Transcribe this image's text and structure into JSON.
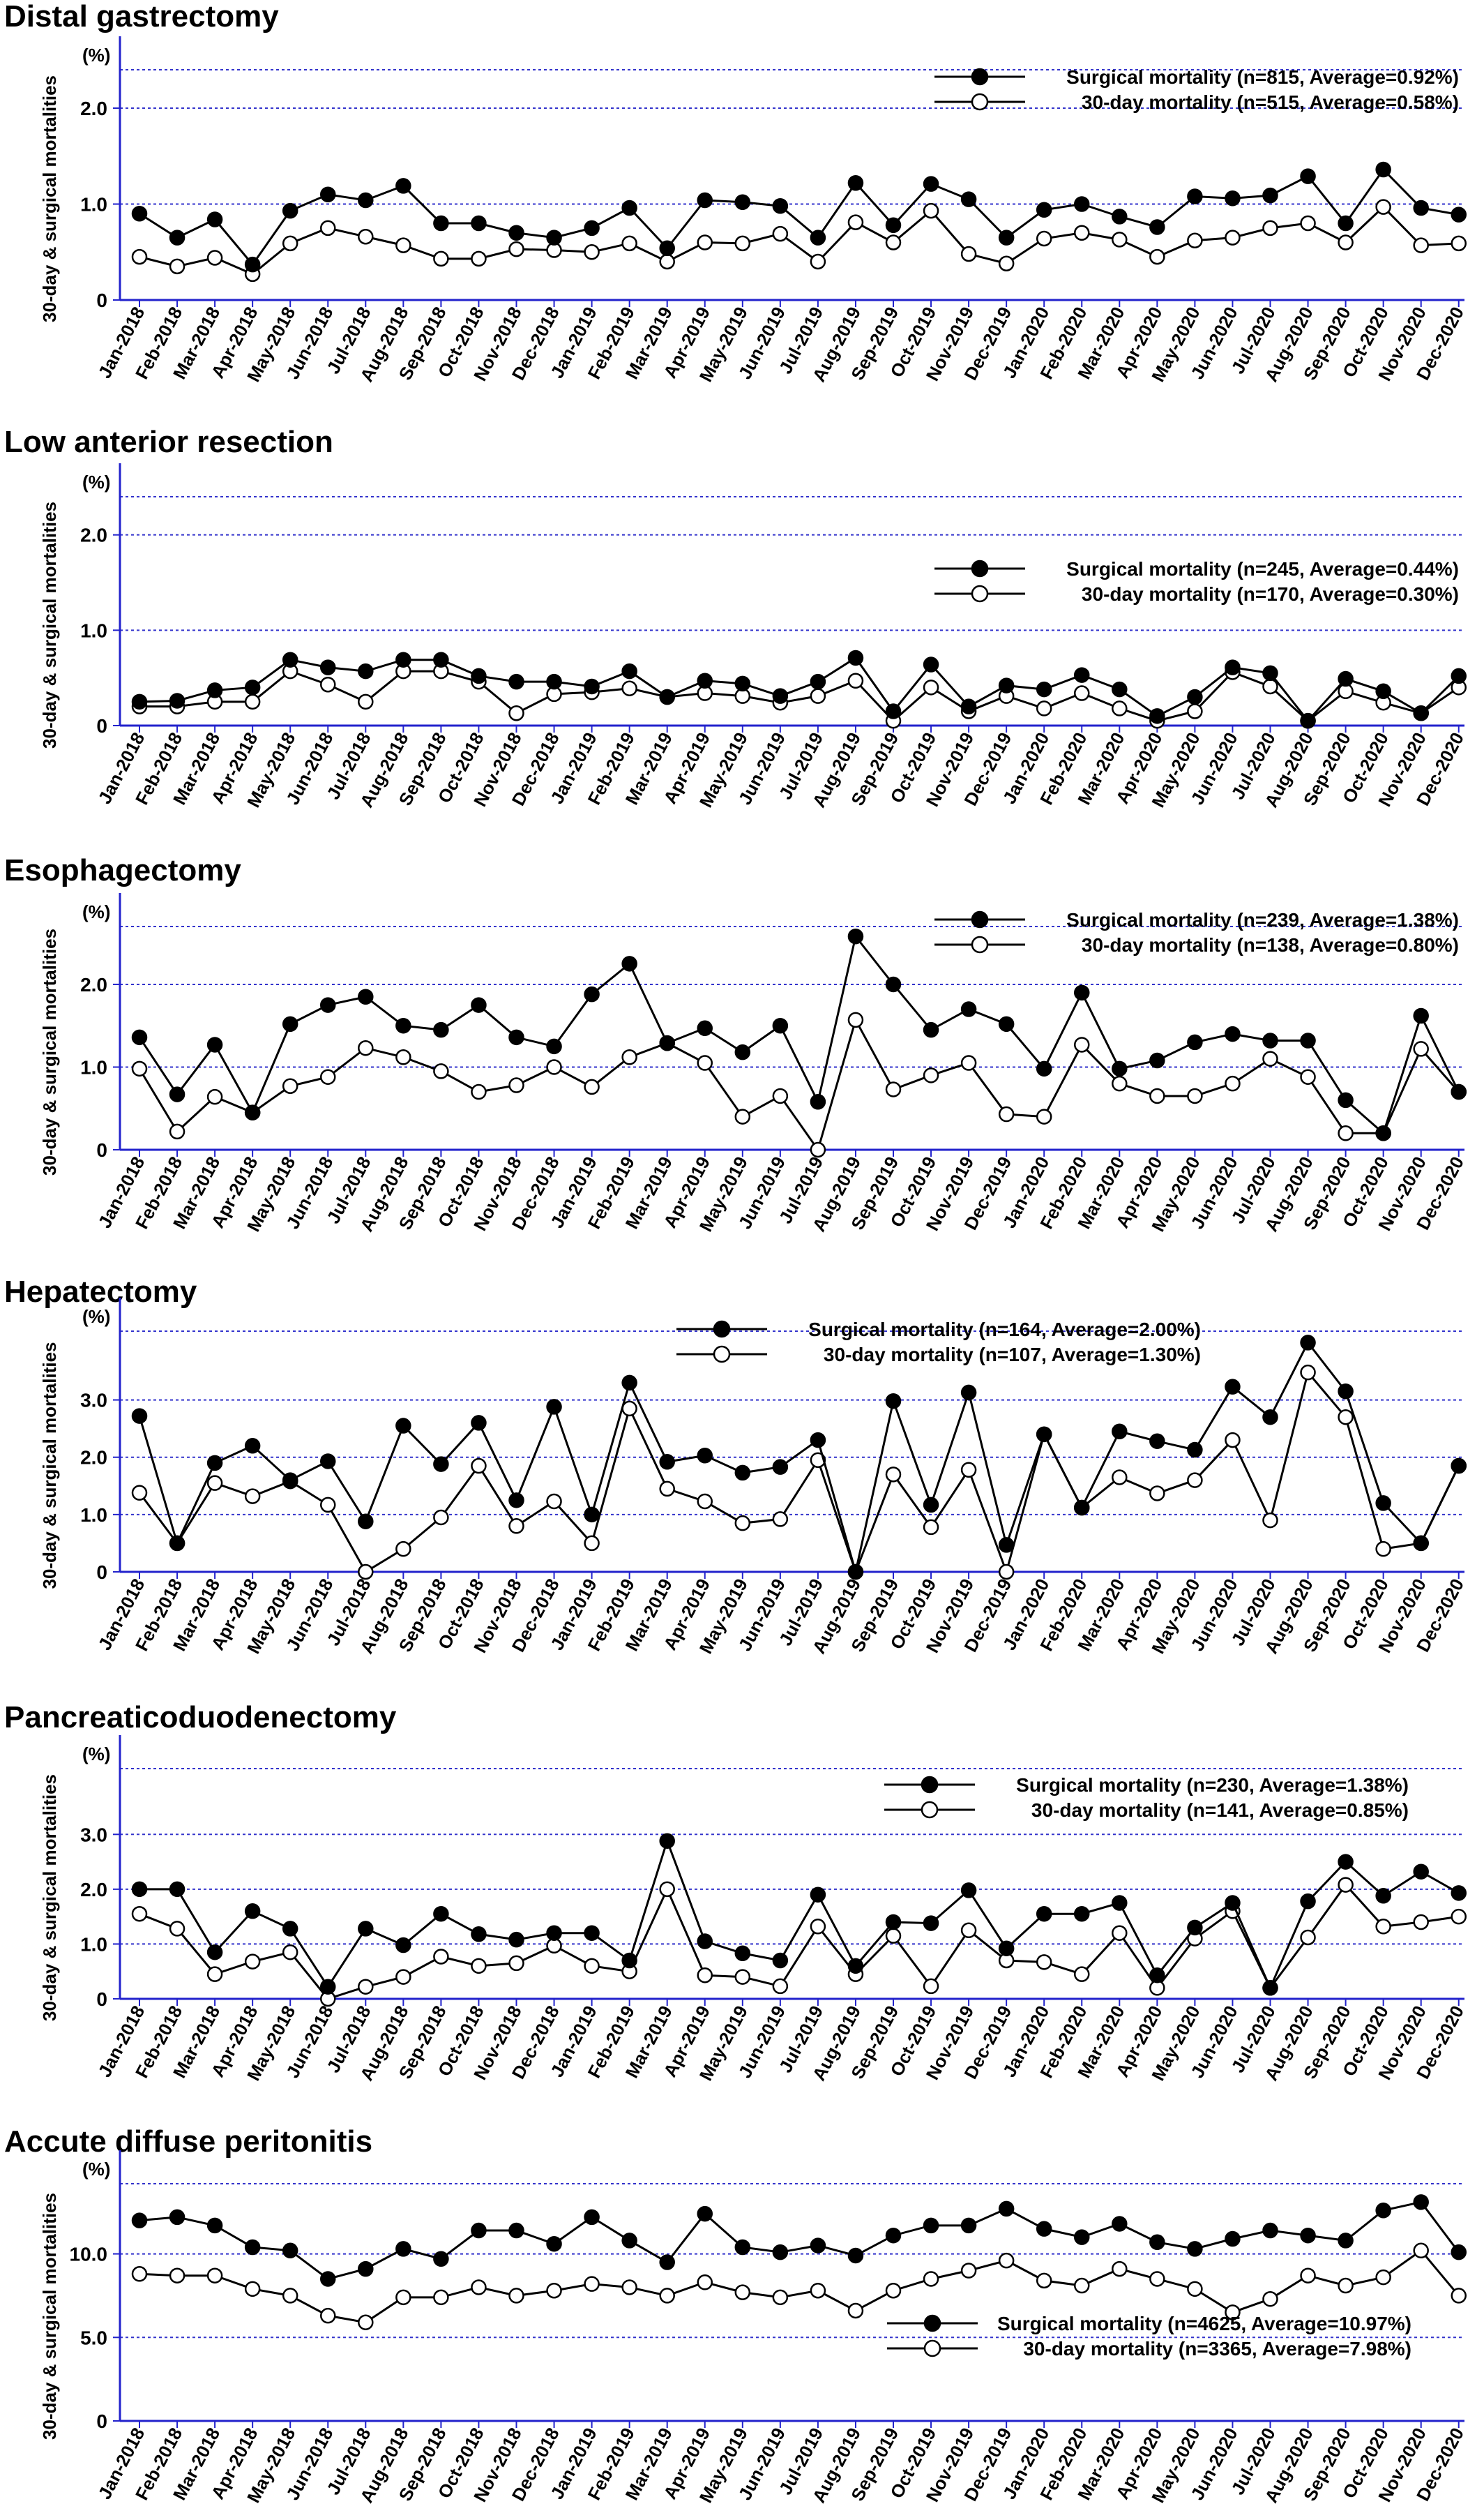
{
  "months": [
    "Jan-2018",
    "Feb-2018",
    "Mar-2018",
    "Apr-2018",
    "May-2018",
    "Jun-2018",
    "Jul-2018",
    "Aug-2018",
    "Sep-2018",
    "Oct-2018",
    "Nov-2018",
    "Dec-2018",
    "Jan-2019",
    "Feb-2019",
    "Mar-2019",
    "Apr-2019",
    "May-2019",
    "Jun-2019",
    "Jul-2019",
    "Aug-2019",
    "Sep-2019",
    "Oct-2019",
    "Nov-2019",
    "Dec-2019",
    "Jan-2020",
    "Feb-2020",
    "Mar-2020",
    "Apr-2020",
    "May-2020",
    "Jun-2020",
    "Jul-2020",
    "Aug-2020",
    "Sep-2020",
    "Oct-2020",
    "Nov-2020",
    "Dec-2020"
  ],
  "colors": {
    "axis": "#2222cc",
    "grid": "#3333cc",
    "line": "#000000",
    "open_marker_fill": "#ffffff",
    "filled_marker": "#000000"
  },
  "chart_data": [
    {
      "type": "line",
      "title": "Distal gastrectomy",
      "unit_label": "(%)",
      "ylabel": "30-day & surgical mortalities",
      "yticks": [
        "0",
        "1.0",
        "2.0"
      ],
      "ylim": [
        0,
        2.4
      ],
      "legend_position": "top-right",
      "series": [
        {
          "name": "Surgical mortality (n=815, Average=0.92%)",
          "marker": "filled",
          "values": [
            0.9,
            0.65,
            0.84,
            0.37,
            0.93,
            1.1,
            1.04,
            1.19,
            0.8,
            0.8,
            0.7,
            0.65,
            0.75,
            0.96,
            0.54,
            1.04,
            1.02,
            0.98,
            0.65,
            1.22,
            0.78,
            1.21,
            1.05,
            0.65,
            0.94,
            1.0,
            0.87,
            0.76,
            1.08,
            1.06,
            1.09,
            1.29,
            0.8,
            1.36,
            0.96,
            0.89
          ]
        },
        {
          "name": "30-day mortality (n=515, Average=0.58%)",
          "marker": "open",
          "values": [
            0.45,
            0.35,
            0.44,
            0.27,
            0.59,
            0.75,
            0.66,
            0.57,
            0.43,
            0.43,
            0.53,
            0.52,
            0.5,
            0.59,
            0.4,
            0.6,
            0.59,
            0.69,
            0.4,
            0.81,
            0.6,
            0.93,
            0.48,
            0.38,
            0.64,
            0.7,
            0.63,
            0.45,
            0.62,
            0.65,
            0.75,
            0.8,
            0.6,
            0.97,
            0.57,
            0.59
          ]
        }
      ]
    },
    {
      "type": "line",
      "title": "Low anterior resection",
      "unit_label": "(%)",
      "ylabel": "30-day & surgical mortalities",
      "yticks": [
        "0",
        "1.0",
        "2.0"
      ],
      "ylim": [
        0,
        2.4
      ],
      "legend_position": "center-right",
      "series": [
        {
          "name": "Surgical mortality (n=245, Average=0.44%)",
          "marker": "filled",
          "values": [
            0.25,
            0.26,
            0.37,
            0.4,
            0.69,
            0.61,
            0.57,
            0.69,
            0.69,
            0.52,
            0.46,
            0.46,
            0.41,
            0.57,
            0.3,
            0.47,
            0.44,
            0.31,
            0.46,
            0.71,
            0.15,
            0.64,
            0.2,
            0.42,
            0.38,
            0.53,
            0.38,
            0.1,
            0.3,
            0.61,
            0.55,
            0.05,
            0.49,
            0.36,
            0.13,
            0.52
          ]
        },
        {
          "name": "30-day mortality (n=170, Average=0.30%)",
          "marker": "open",
          "values": [
            0.2,
            0.2,
            0.25,
            0.25,
            0.57,
            0.43,
            0.25,
            0.57,
            0.57,
            0.46,
            0.13,
            0.33,
            0.35,
            0.39,
            0.3,
            0.34,
            0.31,
            0.24,
            0.31,
            0.47,
            0.05,
            0.4,
            0.15,
            0.31,
            0.18,
            0.34,
            0.18,
            0.05,
            0.15,
            0.56,
            0.41,
            0.05,
            0.36,
            0.24,
            0.13,
            0.4
          ]
        }
      ]
    },
    {
      "type": "line",
      "title": "Esophagectomy",
      "unit_label": "(%)",
      "ylabel": "30-day & surgical mortalities",
      "yticks": [
        "0",
        "1.0",
        "2.0"
      ],
      "ylim": [
        0,
        2.7
      ],
      "legend_position": "top-right",
      "series": [
        {
          "name": "Surgical mortality (n=239, Average=1.38%)",
          "marker": "filled",
          "values": [
            1.36,
            0.67,
            1.27,
            0.45,
            1.52,
            1.75,
            1.85,
            1.5,
            1.45,
            1.75,
            1.36,
            1.25,
            1.88,
            2.25,
            1.29,
            1.47,
            1.18,
            1.5,
            0.58,
            2.58,
            2.0,
            1.45,
            1.7,
            1.52,
            0.98,
            1.9,
            0.98,
            1.08,
            1.3,
            1.4,
            1.32,
            1.32,
            0.6,
            0.2,
            1.62,
            0.7
          ]
        },
        {
          "name": "30-day mortality (n=138, Average=0.80%)",
          "marker": "open",
          "values": [
            0.98,
            0.22,
            0.64,
            0.45,
            0.77,
            0.88,
            1.23,
            1.12,
            0.95,
            0.7,
            0.78,
            1.0,
            0.76,
            1.12,
            1.29,
            1.05,
            0.4,
            0.65,
            0.0,
            1.57,
            0.73,
            0.9,
            1.05,
            0.43,
            0.4,
            1.27,
            0.8,
            0.65,
            0.65,
            0.8,
            1.1,
            0.88,
            0.2,
            0.2,
            1.22,
            0.7
          ]
        }
      ]
    },
    {
      "type": "line",
      "title": "Hepatectomy",
      "unit_label": "(%)",
      "ylabel": "30-day & surgical mortalities",
      "yticks": [
        "0",
        "1.0",
        "2.0",
        "3.0"
      ],
      "ylim": [
        0,
        4.2
      ],
      "legend_position": "top-center",
      "series": [
        {
          "name": "Surgical mortality (n=164, Average=2.00%)",
          "marker": "filled",
          "values": [
            2.72,
            0.5,
            1.9,
            2.2,
            1.6,
            1.93,
            0.88,
            2.55,
            1.88,
            2.6,
            1.25,
            2.88,
            1.0,
            3.3,
            1.92,
            2.03,
            1.73,
            1.83,
            2.3,
            0.0,
            2.98,
            1.17,
            3.13,
            0.47,
            2.4,
            1.12,
            2.45,
            2.28,
            2.13,
            3.23,
            2.7,
            4.0,
            3.15,
            1.2,
            0.5,
            1.85
          ]
        },
        {
          "name": "30-day mortality (n=107, Average=1.30%)",
          "marker": "open",
          "values": [
            1.38,
            0.5,
            1.55,
            1.32,
            1.58,
            1.17,
            0.0,
            0.4,
            0.95,
            1.85,
            0.8,
            1.23,
            0.5,
            2.85,
            1.45,
            1.23,
            0.85,
            0.92,
            1.95,
            0.0,
            1.7,
            0.78,
            1.78,
            0.0,
            2.4,
            1.12,
            1.65,
            1.37,
            1.6,
            2.3,
            0.9,
            3.48,
            2.7,
            0.4,
            0.5,
            1.85
          ]
        }
      ]
    },
    {
      "type": "line",
      "title": "Pancreaticoduodenectomy",
      "unit_label": "(%)",
      "ylabel": "30-day & surgical mortalities",
      "yticks": [
        "0",
        "1.0",
        "2.0",
        "3.0"
      ],
      "ylim": [
        0,
        4.2
      ],
      "legend_position": "top-right",
      "series": [
        {
          "name": "Surgical mortality (n=230, Average=1.38%)",
          "marker": "filled",
          "values": [
            2.0,
            2.0,
            0.85,
            1.6,
            1.28,
            0.22,
            1.28,
            0.98,
            1.55,
            1.18,
            1.08,
            1.2,
            1.2,
            0.7,
            2.88,
            1.05,
            0.83,
            0.7,
            1.9,
            0.6,
            1.4,
            1.38,
            1.98,
            0.92,
            1.55,
            1.55,
            1.75,
            0.43,
            1.3,
            1.75,
            0.2,
            1.78,
            2.5,
            1.88,
            2.32,
            1.93
          ]
        },
        {
          "name": "30-day mortality (n=141, Average=0.85%)",
          "marker": "open",
          "values": [
            1.55,
            1.28,
            0.45,
            0.68,
            0.85,
            0.0,
            0.22,
            0.4,
            0.77,
            0.6,
            0.65,
            0.97,
            0.6,
            0.5,
            2.0,
            0.43,
            0.4,
            0.23,
            1.32,
            0.45,
            1.15,
            0.23,
            1.25,
            0.7,
            0.67,
            0.45,
            1.2,
            0.2,
            1.1,
            1.6,
            0.2,
            1.12,
            2.08,
            1.32,
            1.4,
            1.5
          ]
        }
      ]
    },
    {
      "type": "line",
      "title": "Accute diffuse peritonitis",
      "unit_label": "(%)",
      "ylabel": "30-day & surgical mortalities",
      "yticks": [
        "0",
        "5.0",
        "10.0"
      ],
      "ylim": [
        0,
        14.2
      ],
      "legend_position": "bottom-right",
      "series": [
        {
          "name": "Surgical mortality (n=4625, Average=10.97%)",
          "marker": "filled",
          "values": [
            12.0,
            12.2,
            11.7,
            10.4,
            10.2,
            8.5,
            9.1,
            10.3,
            9.7,
            11.4,
            11.4,
            10.6,
            12.2,
            10.8,
            9.5,
            12.4,
            10.4,
            10.1,
            10.5,
            9.9,
            11.1,
            11.7,
            11.7,
            12.7,
            11.5,
            11.0,
            11.8,
            10.7,
            10.3,
            10.9,
            11.4,
            11.1,
            10.8,
            12.6,
            13.1,
            10.1
          ]
        },
        {
          "name": "30-day mortality (n=3365, Average=7.98%)",
          "marker": "open",
          "values": [
            8.8,
            8.7,
            8.7,
            7.9,
            7.5,
            6.3,
            5.9,
            7.4,
            7.4,
            8.0,
            7.5,
            7.8,
            8.2,
            8.0,
            7.5,
            8.3,
            7.7,
            7.4,
            7.8,
            6.6,
            7.8,
            8.5,
            9.0,
            9.6,
            8.4,
            8.1,
            9.1,
            8.5,
            7.9,
            6.5,
            7.3,
            8.7,
            8.1,
            8.6,
            10.2,
            7.5
          ]
        }
      ]
    }
  ]
}
